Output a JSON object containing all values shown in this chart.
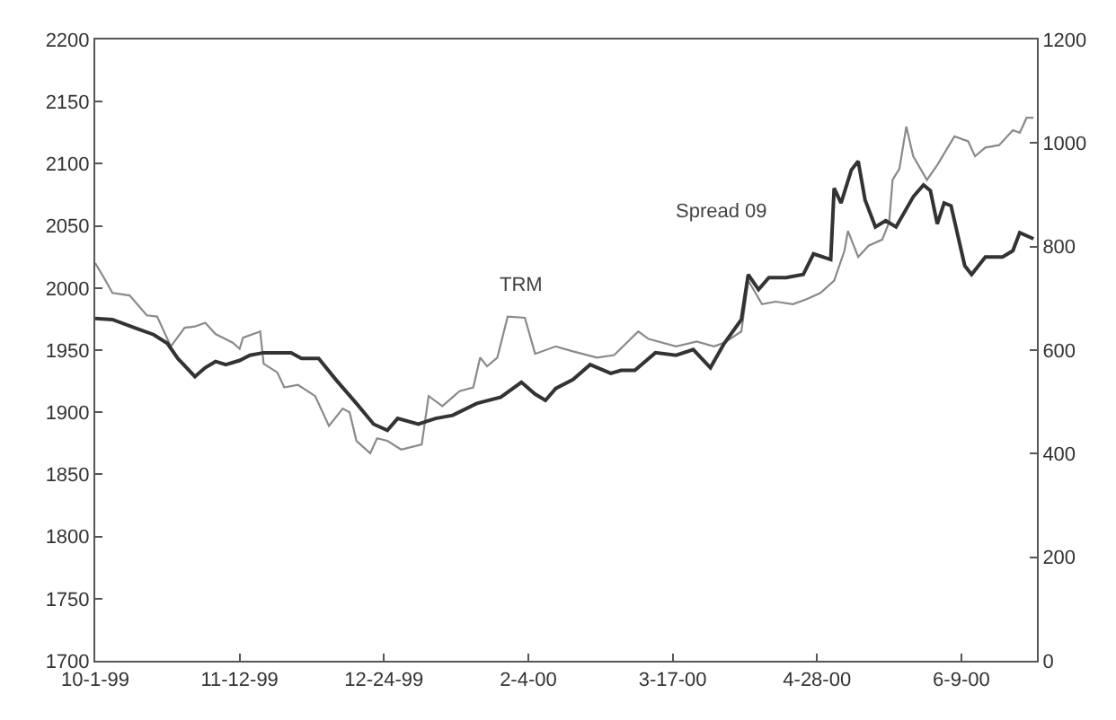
{
  "chart_data": {
    "type": "line",
    "xlim": [
      "1999-10-01",
      "2000-07-01"
    ],
    "xticks": [
      {
        "value": "1999-10-01",
        "label": "10-1-99"
      },
      {
        "value": "1999-11-12",
        "label": "11-12-99"
      },
      {
        "value": "1999-12-24",
        "label": "12-24-99"
      },
      {
        "value": "2000-02-04",
        "label": "2-4-00"
      },
      {
        "value": "2000-03-17",
        "label": "3-17-00"
      },
      {
        "value": "2000-04-28",
        "label": "4-28-00"
      },
      {
        "value": "2000-06-09",
        "label": "6-9-00"
      }
    ],
    "ylim": [
      1700,
      2200
    ],
    "yticks": [
      1700,
      1750,
      1800,
      1850,
      1900,
      1950,
      2000,
      2050,
      2100,
      2150,
      2200
    ],
    "y2lim": [
      0,
      1200
    ],
    "y2ticks": [
      0,
      200,
      400,
      600,
      800,
      1000,
      1200
    ],
    "series": [
      {
        "color": "#8a8a8a",
        "x": [
          "1999-10-01",
          "1999-10-04",
          "1999-10-06",
          "1999-10-11",
          "1999-10-16",
          "1999-10-19",
          "1999-10-23",
          "1999-10-27",
          "1999-10-30",
          "1999-11-02",
          "1999-11-05",
          "1999-11-10",
          "1999-11-12",
          "1999-11-13",
          "1999-11-18",
          "1999-11-19",
          "1999-11-23",
          "1999-11-25",
          "1999-11-29",
          "1999-12-04",
          "1999-12-08",
          "1999-12-12",
          "1999-12-14",
          "1999-12-16",
          "1999-12-20",
          "1999-12-22",
          "1999-12-25",
          "1999-12-29",
          "2000-01-04",
          "2000-01-06",
          "2000-01-10",
          "2000-01-15",
          "2000-01-19",
          "2000-01-21",
          "2000-01-23",
          "2000-01-26",
          "2000-01-29",
          "2000-02-03",
          "2000-02-06",
          "2000-02-12",
          "2000-02-17",
          "2000-02-24",
          "2000-02-29",
          "2000-03-07",
          "2000-03-10",
          "2000-03-18",
          "2000-03-24",
          "2000-03-29",
          "2000-04-01",
          "2000-04-06",
          "2000-04-08",
          "2000-04-12",
          "2000-04-16",
          "2000-04-21",
          "2000-04-25",
          "2000-04-29",
          "2000-05-03",
          "2000-05-06",
          "2000-05-07",
          "2000-05-10",
          "2000-05-13",
          "2000-05-17",
          "2000-05-19",
          "2000-05-20",
          "2000-05-22",
          "2000-05-24",
          "2000-05-26",
          "2000-05-30",
          "2000-06-02",
          "2000-06-07",
          "2000-06-11",
          "2000-06-13",
          "2000-06-16",
          "2000-06-20",
          "2000-06-24",
          "2000-06-26",
          "2000-06-28",
          "2000-06-30"
        ],
        "values": [
          2020,
          2006,
          1996,
          1994,
          1978,
          1977,
          1953,
          1968,
          1969,
          1972,
          1963,
          1956,
          1951,
          1960,
          1965,
          1939,
          1932,
          1920,
          1922,
          1913,
          1889,
          1903,
          1900,
          1877,
          1867,
          1879,
          1877,
          1870,
          1874,
          1913,
          1905,
          1917,
          1920,
          1944,
          1937,
          1944,
          1977,
          1976,
          1947,
          1953,
          1949,
          1944,
          1946,
          1965,
          1959,
          1953,
          1957,
          1953,
          1956,
          1965,
          2006,
          1987,
          1989,
          1987,
          1991,
          1996,
          2006,
          2030,
          2046,
          2025,
          2034,
          2039,
          2053,
          2087,
          2096,
          2130,
          2106,
          2087,
          2099,
          2122,
          2118,
          2106,
          2113,
          2115,
          2127,
          2125,
          2137,
          2137
        ]
      },
      {
        "color": "#333333",
        "axis": "y2",
        "x": [
          "1999-10-01",
          "1999-10-06",
          "1999-10-13",
          "1999-10-18",
          "1999-10-22",
          "1999-10-25",
          "1999-10-30",
          "1999-11-02",
          "1999-11-05",
          "1999-11-08",
          "1999-11-12",
          "1999-11-15",
          "1999-11-19",
          "1999-11-27",
          "1999-11-30",
          "1999-12-05",
          "1999-12-10",
          "1999-12-16",
          "1999-12-21",
          "1999-12-25",
          "1999-12-28",
          "2000-01-03",
          "2000-01-08",
          "2000-01-13",
          "2000-01-20",
          "2000-01-27",
          "2000-02-02",
          "2000-02-06",
          "2000-02-09",
          "2000-02-12",
          "2000-02-17",
          "2000-02-22",
          "2000-02-28",
          "2000-03-02",
          "2000-03-06",
          "2000-03-12",
          "2000-03-18",
          "2000-03-23",
          "2000-03-28",
          "2000-04-01",
          "2000-04-06",
          "2000-04-08",
          "2000-04-11",
          "2000-04-14",
          "2000-04-19",
          "2000-04-24",
          "2000-04-27",
          "2000-05-02",
          "2000-05-03",
          "2000-05-05",
          "2000-05-08",
          "2000-05-10",
          "2000-05-12",
          "2000-05-15",
          "2000-05-18",
          "2000-05-21",
          "2000-05-26",
          "2000-05-29",
          "2000-05-31",
          "2000-06-02",
          "2000-06-04",
          "2000-06-06",
          "2000-06-10",
          "2000-06-12",
          "2000-06-16",
          "2000-06-21",
          "2000-06-24",
          "2000-06-26",
          "2000-06-30"
        ],
        "values": [
          661,
          659,
          642,
          630,
          613,
          584,
          549,
          566,
          578,
          572,
          580,
          590,
          595,
          595,
          584,
          584,
          543,
          497,
          457,
          445,
          468,
          457,
          468,
          474,
          497,
          509,
          538,
          515,
          503,
          526,
          543,
          572,
          555,
          561,
          561,
          595,
          590,
          601,
          566,
          613,
          659,
          746,
          717,
          740,
          740,
          746,
          786,
          775,
          913,
          884,
          948,
          965,
          890,
          838,
          850,
          838,
          896,
          919,
          908,
          844,
          884,
          879,
          763,
          746,
          780,
          780,
          792,
          827,
          815
        ]
      }
    ],
    "annotations": [
      "TRM",
      "Spread 09"
    ]
  }
}
